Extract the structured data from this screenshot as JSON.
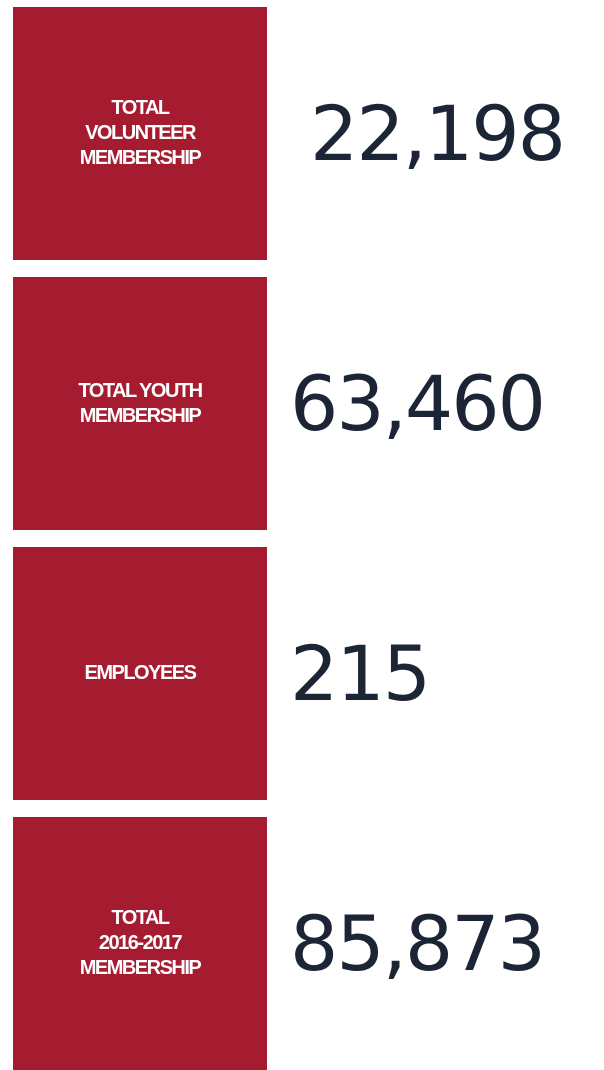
{
  "items": [
    {
      "label_lines": [
        "TOTAL",
        "VOLUNTEER",
        "MEMBERSHIP"
      ],
      "value": "22,198"
    },
    {
      "label_lines": [
        "TOTAL YOUTH",
        "MEMBERSHIP"
      ],
      "value": "63,460"
    },
    {
      "label_lines": [
        "EMPLOYEES"
      ],
      "value": "215"
    },
    {
      "label_lines": [
        "TOTAL",
        "2016-2017",
        "MEMBERSHIP"
      ],
      "value": "85,873"
    }
  ]
}
